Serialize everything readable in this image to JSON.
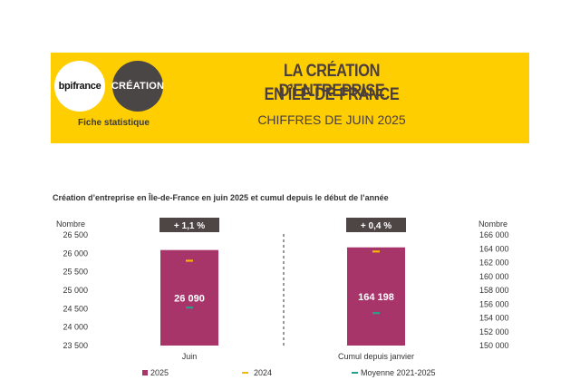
{
  "header": {
    "logo_bpi": "bpifrance",
    "logo_creation": "CRÉATION",
    "fiche": "Fiche statistique",
    "title_line1": "LA CRÉATION D’ENTREPRISE",
    "title_line2": "EN ÎLE-DE-FRANCE",
    "subtitle": "CHIFFRES DE JUIN 2025"
  },
  "colors": {
    "banner": "#FFCE00",
    "bar_2025": "#A8356A",
    "marker_2024": "#F5B800",
    "marker_avg": "#2E9C8C",
    "badge": "#4E4545"
  },
  "chart_data": {
    "type": "bar",
    "title": "Création d’entreprise en Île-de-France en juin 2025 et cumul depuis le début de l’année",
    "ylabel_left": "Nombre",
    "ylabel_right": "Nombre",
    "categories": [
      "Juin",
      "Cumul depuis janvier"
    ],
    "left_axis": {
      "ylim": [
        23500,
        26500
      ],
      "ticks": [
        "26 500",
        "26 000",
        "25 500",
        "25 000",
        "24 500",
        "24 000",
        "23 500"
      ]
    },
    "right_axis": {
      "ylim": [
        150000,
        166000
      ],
      "ticks": [
        "166 000",
        "164 000",
        "162 000",
        "160 000",
        "158 000",
        "156 000",
        "154 000",
        "152 000",
        "150 000"
      ]
    },
    "series": [
      {
        "name": "2025",
        "kind": "bar",
        "values": [
          26090,
          164198
        ],
        "labels": [
          "26 090",
          "164 198"
        ]
      },
      {
        "name": "2024",
        "kind": "marker",
        "values": [
          25800,
          163600
        ]
      },
      {
        "name": "Moyenne 2021-2025",
        "kind": "marker",
        "values": [
          24530,
          154700
        ]
      }
    ],
    "badges": [
      "+ 1,1 %",
      "+ 0,4 %"
    ],
    "legend_position": "bottom",
    "grid": false
  }
}
